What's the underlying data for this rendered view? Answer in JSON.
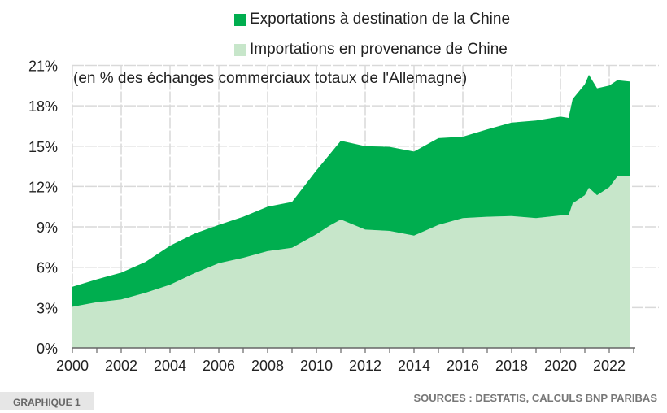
{
  "chart_data": {
    "type": "area",
    "stacked": true,
    "subtitle": "(en % des échanges commerciaux totaux de l'Allemagne)",
    "x_ticks": [
      "2000",
      "2002",
      "2004",
      "2006",
      "2008",
      "2010",
      "2012",
      "2014",
      "2016",
      "2018",
      "2020",
      "2022"
    ],
    "y_ticks": [
      "0%",
      "3%",
      "6%",
      "9%",
      "12%",
      "15%",
      "18%",
      "21%"
    ],
    "ylim": [
      0,
      21
    ],
    "xlim": [
      "2000-01",
      "2023-01"
    ],
    "grid": true,
    "legend_position": "top",
    "x": [
      "2000-01",
      "2001-01",
      "2002-01",
      "2003-01",
      "2004-01",
      "2005-01",
      "2006-01",
      "2007-01",
      "2008-01",
      "2009-01",
      "2010-01",
      "2010-07",
      "2011-01",
      "2012-01",
      "2013-01",
      "2014-01",
      "2015-01",
      "2016-01",
      "2017-01",
      "2018-01",
      "2019-01",
      "2020-01",
      "2020-05",
      "2020-07",
      "2021-01",
      "2021-03",
      "2021-07",
      "2022-01",
      "2022-05",
      "2022-11"
    ],
    "series": [
      {
        "name": "Importations en provenance de Chine",
        "color": "#c7e6ca",
        "values": [
          3.06,
          3.4,
          3.6,
          4.1,
          4.7,
          5.55,
          6.3,
          6.7,
          7.2,
          7.45,
          8.45,
          9.05,
          9.55,
          8.8,
          8.7,
          8.35,
          9.15,
          9.65,
          9.75,
          9.8,
          9.65,
          9.85,
          9.85,
          10.75,
          11.35,
          11.9,
          11.35,
          11.95,
          12.75,
          12.8
        ]
      },
      {
        "name": "Exportations à destination de la Chine",
        "color": "#00ae4f",
        "values": [
          1.49,
          1.7,
          2.0,
          2.3,
          2.9,
          2.95,
          2.85,
          3.05,
          3.3,
          3.4,
          4.75,
          5.25,
          5.85,
          6.2,
          6.25,
          6.25,
          6.45,
          6.05,
          6.5,
          6.95,
          7.25,
          7.35,
          7.25,
          7.75,
          8.25,
          8.4,
          7.95,
          7.55,
          7.15,
          7.0
        ]
      }
    ]
  },
  "legend": {
    "exports": "Exportations à destination de la Chine",
    "imports": "Importations en provenance de Chine"
  },
  "footer": {
    "label": "GRAPHIQUE 1",
    "sources": "SOURCES : DESTATIS, CALCULS BNP PARIBAS"
  }
}
